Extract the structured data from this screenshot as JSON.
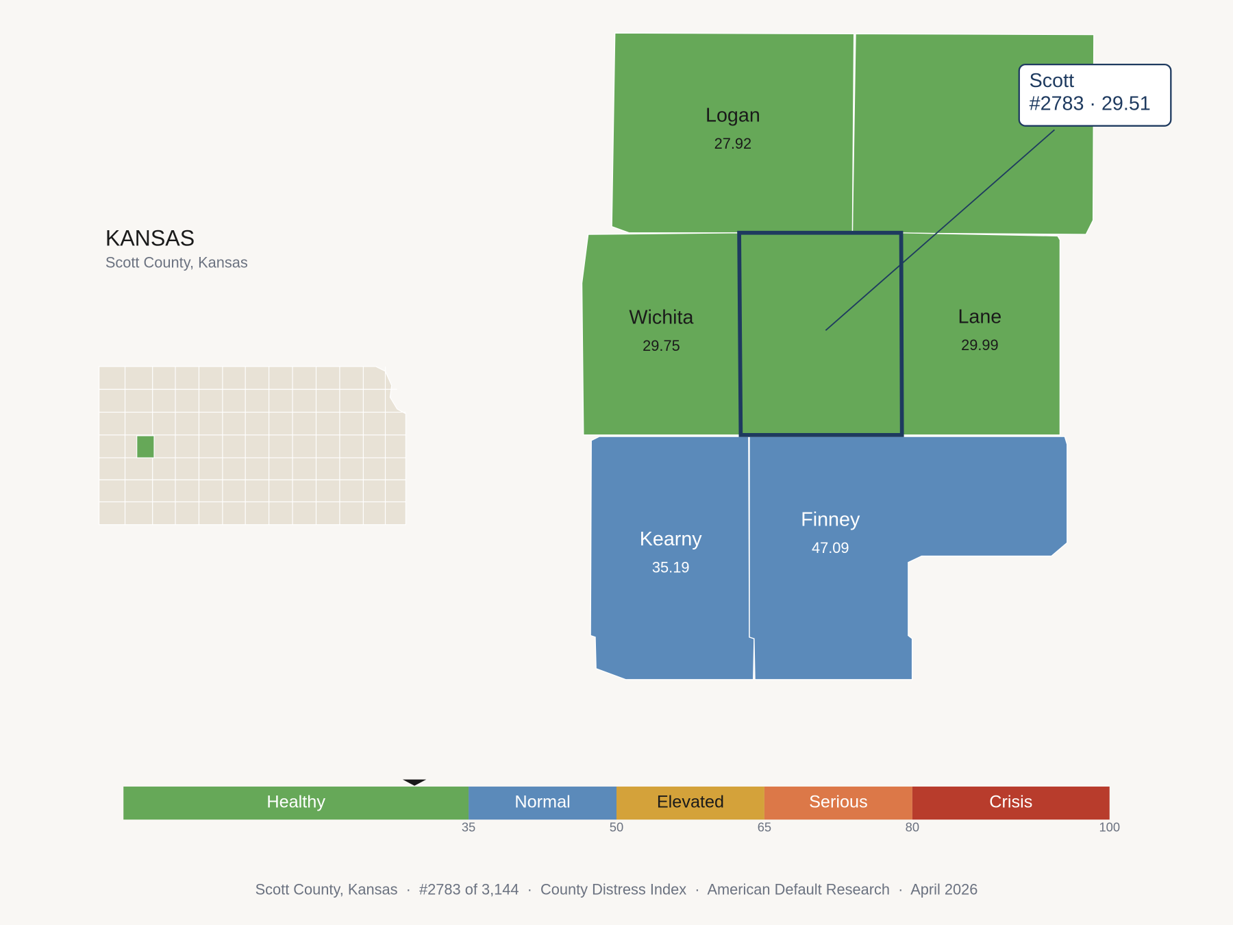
{
  "title": "KANSAS",
  "subtitle": "Scott County, Kansas",
  "counties": [
    {
      "name": "Logan",
      "value": 27.92
    },
    {
      "name": "Wichita",
      "value": 29.75
    },
    {
      "name": "Lane",
      "value": 29.99
    },
    {
      "name": "Kearny",
      "value": 35.19
    },
    {
      "name": "Finney",
      "value": 47.09
    }
  ],
  "selected": {
    "name": "Scott",
    "detail": "#2783 · 29.51",
    "value": 29.51
  },
  "legend": {
    "xlim": [
      0,
      100
    ],
    "xticks": [
      35,
      50,
      65,
      80,
      100
    ],
    "bins": [
      {
        "label": "Healthy",
        "color": "#66a858"
      },
      {
        "label": "Normal",
        "color": "#5b8aba"
      },
      {
        "label": "Elevated",
        "color": "#d4a23a"
      },
      {
        "label": "Serious",
        "color": "#dc7848"
      },
      {
        "label": "Crisis",
        "color": "#b83c2c"
      }
    ]
  },
  "footer": "Scott County, Kansas  ·  #2783 of 3,144  ·  County Distress Index  ·  American Default Research  ·  April 2026"
}
